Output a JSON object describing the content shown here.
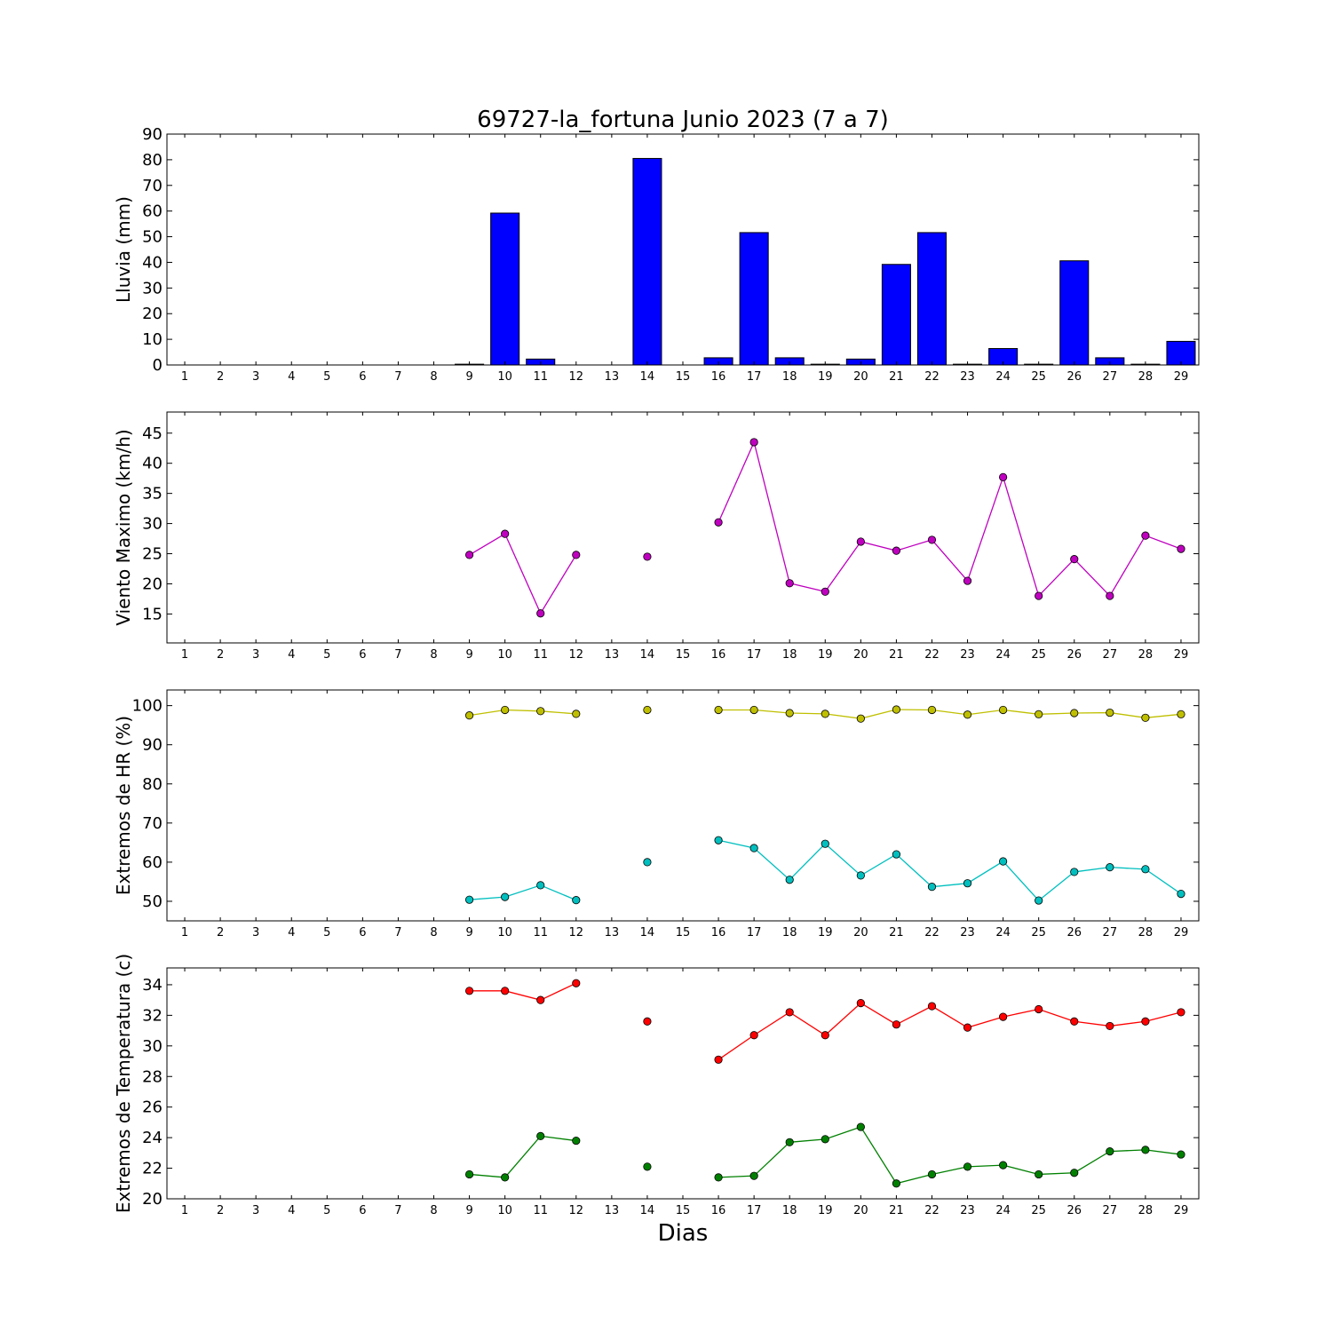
{
  "figure": {
    "title": "69727-la_fortuna Junio 2023  (7 a 7)",
    "xlabel": "Dias"
  },
  "chart_data": [
    {
      "type": "bar",
      "ylabel": "Lluvia (mm)",
      "ylim": [
        0,
        90
      ],
      "yticks": [
        0,
        10,
        20,
        30,
        40,
        50,
        60,
        70,
        80,
        90
      ],
      "categories": [
        1,
        2,
        3,
        4,
        5,
        6,
        7,
        8,
        9,
        10,
        11,
        12,
        13,
        14,
        15,
        16,
        17,
        18,
        19,
        20,
        21,
        22,
        23,
        24,
        25,
        26,
        27,
        28,
        29
      ],
      "color": "#0000ff",
      "values": [
        0,
        0,
        0,
        0,
        0,
        0,
        0,
        0,
        0.3,
        59.2,
        2.3,
        0,
        0,
        80.5,
        0,
        2.8,
        51.6,
        2.8,
        0.3,
        2.3,
        39.2,
        51.6,
        0.3,
        6.4,
        0.3,
        40.6,
        2.8,
        0.3,
        9.2
      ]
    },
    {
      "type": "line",
      "ylabel": "Viento Maximo (km/h)",
      "ylim": [
        10.2,
        48.5
      ],
      "yticks": [
        15,
        20,
        25,
        30,
        35,
        40,
        45
      ],
      "categories": [
        1,
        2,
        3,
        4,
        5,
        6,
        7,
        8,
        9,
        10,
        11,
        12,
        13,
        14,
        15,
        16,
        17,
        18,
        19,
        20,
        21,
        22,
        23,
        24,
        25,
        26,
        27,
        28,
        29
      ],
      "series": [
        {
          "color": "#bf00bf",
          "values": [
            null,
            null,
            null,
            null,
            null,
            null,
            null,
            null,
            24.8,
            28.3,
            15.1,
            24.8,
            null,
            24.5,
            null,
            30.2,
            43.5,
            20.1,
            18.7,
            27.0,
            25.5,
            27.3,
            20.5,
            37.7,
            18.0,
            24.1,
            18.0,
            28.0,
            25.8
          ]
        }
      ]
    },
    {
      "type": "line",
      "ylabel": "Extremos de HR (%)",
      "ylim": [
        45,
        104
      ],
      "yticks": [
        50,
        60,
        70,
        80,
        90,
        100
      ],
      "categories": [
        1,
        2,
        3,
        4,
        5,
        6,
        7,
        8,
        9,
        10,
        11,
        12,
        13,
        14,
        15,
        16,
        17,
        18,
        19,
        20,
        21,
        22,
        23,
        24,
        25,
        26,
        27,
        28,
        29
      ],
      "series": [
        {
          "color": "#bfbf00",
          "values": [
            null,
            null,
            null,
            null,
            null,
            null,
            null,
            null,
            97.5,
            98.9,
            98.6,
            97.9,
            null,
            98.9,
            null,
            98.9,
            98.9,
            98.1,
            97.9,
            96.7,
            99.0,
            98.9,
            97.7,
            98.9,
            97.8,
            98.1,
            98.2,
            96.9,
            97.8
          ]
        },
        {
          "color": "#00bfbf",
          "values": [
            null,
            null,
            null,
            null,
            null,
            null,
            null,
            null,
            50.4,
            51.1,
            54.1,
            50.3,
            null,
            60.0,
            null,
            65.6,
            63.6,
            55.5,
            64.7,
            56.6,
            62.0,
            53.7,
            54.6,
            60.2,
            50.2,
            57.5,
            58.7,
            58.2,
            51.9
          ]
        }
      ]
    },
    {
      "type": "line",
      "ylabel": "Extremos de Temperatura (c)",
      "ylim": [
        20,
        35.1
      ],
      "yticks": [
        20,
        22,
        24,
        26,
        28,
        30,
        32,
        34
      ],
      "categories": [
        1,
        2,
        3,
        4,
        5,
        6,
        7,
        8,
        9,
        10,
        11,
        12,
        13,
        14,
        15,
        16,
        17,
        18,
        19,
        20,
        21,
        22,
        23,
        24,
        25,
        26,
        27,
        28,
        29
      ],
      "series": [
        {
          "color": "#ff0000",
          "values": [
            null,
            null,
            null,
            null,
            null,
            null,
            null,
            null,
            33.6,
            33.6,
            33.0,
            34.1,
            null,
            31.6,
            null,
            29.1,
            30.7,
            32.2,
            30.7,
            32.8,
            31.4,
            32.6,
            31.2,
            31.9,
            32.4,
            31.6,
            31.3,
            31.6,
            32.2
          ]
        },
        {
          "color": "#008000",
          "values": [
            null,
            null,
            null,
            null,
            null,
            null,
            null,
            null,
            21.6,
            21.4,
            24.1,
            23.8,
            null,
            22.1,
            null,
            21.4,
            21.5,
            23.7,
            23.9,
            24.7,
            21.0,
            21.6,
            22.1,
            22.2,
            21.6,
            21.7,
            23.1,
            23.2,
            22.9
          ]
        }
      ]
    }
  ]
}
